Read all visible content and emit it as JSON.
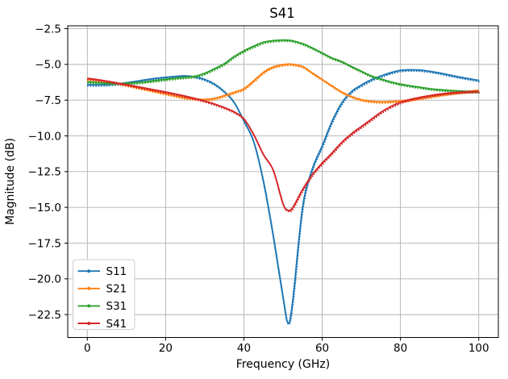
{
  "figure": {
    "title": "S41"
  },
  "chart_data": {
    "type": "line",
    "title": "S41",
    "xlabel": "Frequency (GHz)",
    "ylabel": "Magnitude (dB)",
    "xlim": [
      -5,
      105
    ],
    "ylim": [
      -24.1,
      -2.3
    ],
    "grid": true,
    "grid_color": "#b0b0b0",
    "background": "#ffffff",
    "legend_position": "lower left",
    "marker_note": "each series drawn as solid line with dotted marker trace overlay",
    "x_ticks": {
      "values": [
        0,
        20,
        40,
        60,
        80,
        100
      ],
      "labels": [
        "0",
        "20",
        "40",
        "60",
        "80",
        "100"
      ]
    },
    "y_ticks": {
      "values": [
        -2.5,
        -5.0,
        -7.5,
        -10.0,
        -12.5,
        -15.0,
        -17.5,
        -20.0,
        -22.5
      ],
      "labels": [
        "−2.5",
        "−5.0",
        "−7.5",
        "−10.0",
        "−12.5",
        "−15.0",
        "−17.5",
        "−20.0",
        "−22.5"
      ]
    },
    "x": [
      0,
      2.5,
      5,
      7.5,
      10,
      12.5,
      15,
      17.5,
      20,
      22.5,
      25,
      27.5,
      30,
      32.5,
      35,
      37.5,
      40,
      42.5,
      45,
      47.5,
      50,
      51.3,
      52.5,
      55,
      57.5,
      60,
      62.5,
      65,
      67.5,
      70,
      72.5,
      75,
      77.5,
      80,
      82.5,
      85,
      87.5,
      90,
      92.5,
      95,
      97.5,
      100
    ],
    "series": [
      {
        "name": "S11",
        "color": "#1f77b4",
        "values": [
          -6.42,
          -6.43,
          -6.41,
          -6.36,
          -6.28,
          -6.18,
          -6.07,
          -5.97,
          -5.9,
          -5.84,
          -5.8,
          -5.87,
          -6.05,
          -6.38,
          -6.9,
          -7.65,
          -8.95,
          -10.4,
          -13.2,
          -17.0,
          -21.3,
          -23.1,
          -21.5,
          -15.0,
          -12.3,
          -10.7,
          -9.0,
          -7.7,
          -6.9,
          -6.45,
          -6.08,
          -5.81,
          -5.58,
          -5.42,
          -5.38,
          -5.4,
          -5.48,
          -5.6,
          -5.74,
          -5.88,
          -6.0,
          -6.12
        ]
      },
      {
        "name": "S21",
        "color": "#ff7f0e",
        "values": [
          -6.03,
          -6.1,
          -6.2,
          -6.32,
          -6.45,
          -6.6,
          -6.75,
          -6.9,
          -7.05,
          -7.2,
          -7.34,
          -7.42,
          -7.45,
          -7.38,
          -7.18,
          -6.95,
          -6.7,
          -6.15,
          -5.55,
          -5.18,
          -5.02,
          -4.98,
          -5.0,
          -5.15,
          -5.6,
          -6.05,
          -6.5,
          -6.93,
          -7.25,
          -7.47,
          -7.58,
          -7.62,
          -7.6,
          -7.55,
          -7.47,
          -7.38,
          -7.27,
          -7.15,
          -7.05,
          -6.96,
          -6.88,
          -6.82
        ]
      },
      {
        "name": "S31",
        "color": "#2ca02c",
        "values": [
          -6.22,
          -6.27,
          -6.31,
          -6.33,
          -6.32,
          -6.28,
          -6.21,
          -6.13,
          -6.04,
          -5.96,
          -5.9,
          -5.83,
          -5.62,
          -5.3,
          -4.95,
          -4.45,
          -4.05,
          -3.73,
          -3.45,
          -3.34,
          -3.3,
          -3.31,
          -3.35,
          -3.55,
          -3.85,
          -4.2,
          -4.55,
          -4.8,
          -5.15,
          -5.48,
          -5.8,
          -6.02,
          -6.22,
          -6.38,
          -6.5,
          -6.6,
          -6.7,
          -6.77,
          -6.82,
          -6.86,
          -6.89,
          -6.9
        ]
      },
      {
        "name": "S41",
        "color": "#d62728",
        "values": [
          -5.97,
          -6.06,
          -6.17,
          -6.29,
          -6.41,
          -6.54,
          -6.67,
          -6.8,
          -6.93,
          -7.07,
          -7.22,
          -7.38,
          -7.56,
          -7.77,
          -8.02,
          -8.32,
          -8.8,
          -9.9,
          -11.3,
          -12.4,
          -14.75,
          -15.2,
          -15.0,
          -13.75,
          -12.7,
          -11.9,
          -11.2,
          -10.45,
          -9.85,
          -9.35,
          -8.85,
          -8.35,
          -7.95,
          -7.65,
          -7.45,
          -7.3,
          -7.18,
          -7.08,
          -7.0,
          -6.95,
          -6.91,
          -6.88
        ]
      }
    ]
  }
}
